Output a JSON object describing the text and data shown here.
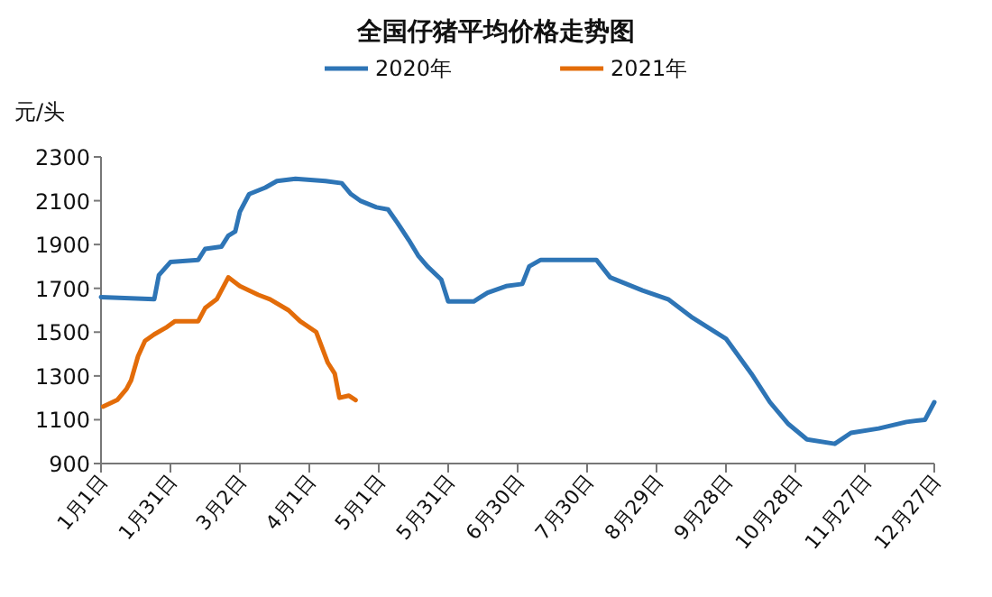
{
  "chart_data": {
    "type": "line",
    "title": "全国仔猪平均价格走势图",
    "ylabel": "元/头",
    "legend": "top",
    "xlim": [
      "--01-01",
      "--12-27"
    ],
    "ylim": [
      900,
      2300
    ],
    "xticks": [
      {
        "value": "--01-01",
        "label": "1月1日"
      },
      {
        "value": "--01-31",
        "label": "1月31日"
      },
      {
        "value": "--03-02",
        "label": "3月2日"
      },
      {
        "value": "--04-01",
        "label": "4月1日"
      },
      {
        "value": "--05-01",
        "label": "5月1日"
      },
      {
        "value": "--05-31",
        "label": "5月31日"
      },
      {
        "value": "--06-30",
        "label": "6月30日"
      },
      {
        "value": "--07-30",
        "label": "7月30日"
      },
      {
        "value": "--08-29",
        "label": "8月29日"
      },
      {
        "value": "--09-28",
        "label": "9月28日"
      },
      {
        "value": "--10-28",
        "label": "10月28日"
      },
      {
        "value": "--11-27",
        "label": "11月27日"
      },
      {
        "value": "--12-27",
        "label": "12月27日"
      }
    ],
    "yticks": [
      900,
      1100,
      1300,
      1500,
      1700,
      1900,
      2100,
      2300
    ],
    "series": [
      {
        "name": "2020年",
        "color": "#2e75b6",
        "x": [
          "--01-01",
          "--01-24",
          "--01-26",
          "--01-31",
          "--02-12",
          "--02-15",
          "--02-22",
          "--02-25",
          "--02-28",
          "--03-02",
          "--03-06",
          "--03-13",
          "--03-18",
          "--03-26",
          "--04-08",
          "--04-15",
          "--04-19",
          "--04-23",
          "--04-30",
          "--05-05",
          "--05-09",
          "--05-14",
          "--05-18",
          "--05-22",
          "--05-28",
          "--05-31",
          "--06-11",
          "--06-14",
          "--06-17",
          "--06-25",
          "--07-02",
          "--07-05",
          "--07-10",
          "--08-03",
          "--08-09",
          "--08-23",
          "--09-03",
          "--09-13",
          "--09-28",
          "--10-09",
          "--10-17",
          "--10-25",
          "--11-02",
          "--11-14",
          "--11-21",
          "--12-03",
          "--12-15",
          "--12-23",
          "--12-27"
        ],
        "values": [
          1660,
          1650,
          1760,
          1820,
          1830,
          1880,
          1890,
          1940,
          1960,
          2050,
          2130,
          2160,
          2190,
          2200,
          2190,
          2180,
          2130,
          2100,
          2070,
          2060,
          2000,
          1920,
          1850,
          1800,
          1740,
          1640,
          1640,
          1660,
          1680,
          1710,
          1720,
          1800,
          1830,
          1830,
          1750,
          1690,
          1650,
          1570,
          1470,
          1310,
          1180,
          1080,
          1010,
          990,
          1040,
          1060,
          1090,
          1100,
          1180
        ]
      },
      {
        "name": "2021年",
        "color": "#e36c09",
        "x": [
          "--01-02",
          "--01-08",
          "--01-12",
          "--01-14",
          "--01-17",
          "--01-20",
          "--01-24",
          "--01-29",
          "--02-02",
          "--02-12",
          "--02-15",
          "--02-20",
          "--02-25",
          "--03-02",
          "--03-10",
          "--03-15",
          "--03-23",
          "--03-28",
          "--04-04",
          "--04-09",
          "--04-12",
          "--04-14",
          "--04-18",
          "--04-21"
        ],
        "values": [
          1160,
          1190,
          1240,
          1280,
          1390,
          1460,
          1490,
          1520,
          1550,
          1550,
          1610,
          1650,
          1750,
          1710,
          1670,
          1650,
          1600,
          1550,
          1500,
          1360,
          1310,
          1200,
          1210,
          1190
        ]
      }
    ]
  }
}
